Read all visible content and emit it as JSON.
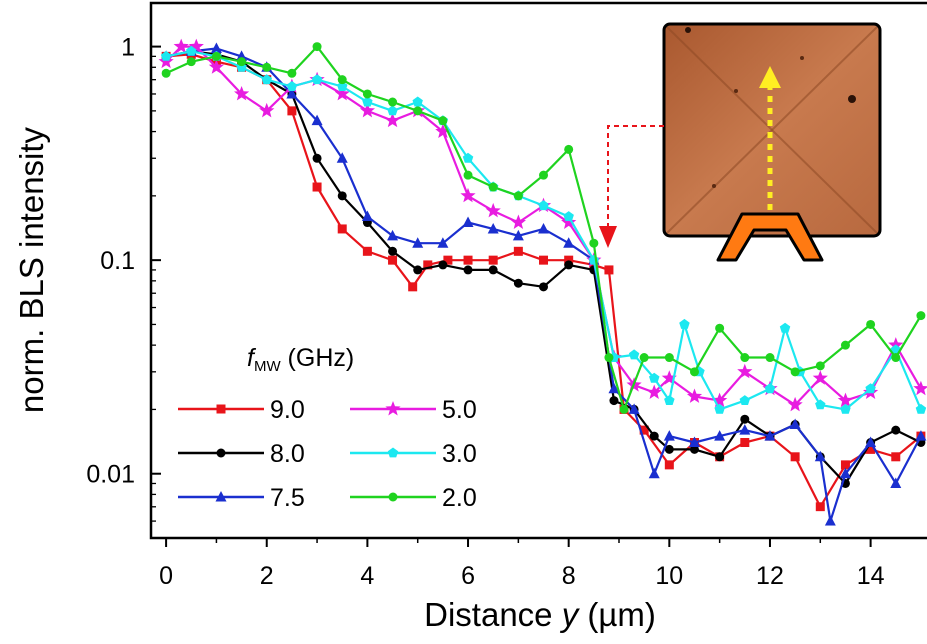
{
  "chart_data": {
    "type": "line",
    "title": "",
    "xlabel": {
      "pre": "Distance ",
      "var": "y",
      "post": " (µm)"
    },
    "ylabel": "norm. BLS intensity",
    "xscale": "linear",
    "yscale": "log",
    "xlim": [
      -0.3,
      15.2
    ],
    "ylim": [
      0.005,
      1.6
    ],
    "xticks": [
      0,
      2,
      4,
      6,
      8,
      10,
      12,
      14
    ],
    "yticks": [
      {
        "value": 1,
        "label": "1"
      },
      {
        "value": 0.1,
        "label": "0.1"
      },
      {
        "value": 0.01,
        "label": "0.01"
      }
    ],
    "legend": {
      "title_symbol": "f",
      "title_subscript": "MW",
      "title_unit": " (GHz)",
      "placement": "lower-left"
    },
    "series": [
      {
        "name": "9.0",
        "color": "#e8141a",
        "marker": "square",
        "dash": "solid",
        "x": [
          0,
          0.5,
          1,
          1.5,
          2,
          2.5,
          3,
          3.5,
          4,
          4.5,
          4.9,
          5.2,
          5.6,
          6,
          6.5,
          7,
          7.5,
          8,
          8.5,
          8.8,
          9.1,
          9.5,
          10,
          10.5,
          11,
          11.5,
          12,
          12.5,
          13,
          13.5,
          14,
          14.5,
          15
        ],
        "y": [
          0.9,
          0.92,
          0.85,
          0.8,
          0.7,
          0.5,
          0.22,
          0.14,
          0.11,
          0.1,
          0.075,
          0.095,
          0.1,
          0.1,
          0.1,
          0.11,
          0.1,
          0.1,
          0.095,
          0.09,
          0.02,
          0.016,
          0.011,
          0.014,
          0.012,
          0.014,
          0.015,
          0.012,
          0.007,
          0.011,
          0.013,
          0.012,
          0.015
        ]
      },
      {
        "name": "8.0",
        "color": "#000000",
        "marker": "circle",
        "dash": "solid",
        "x": [
          0,
          0.5,
          1,
          1.5,
          2,
          2.5,
          3,
          3.5,
          4,
          4.5,
          5,
          5.5,
          6,
          6.5,
          7,
          7.5,
          8,
          8.5,
          8.9,
          9.3,
          9.7,
          10,
          10.5,
          11,
          11.5,
          12,
          12.5,
          13,
          13.5,
          14,
          14.5,
          15
        ],
        "y": [
          0.9,
          0.95,
          0.92,
          0.85,
          0.7,
          0.6,
          0.3,
          0.2,
          0.15,
          0.11,
          0.09,
          0.095,
          0.09,
          0.09,
          0.078,
          0.075,
          0.095,
          0.09,
          0.022,
          0.02,
          0.015,
          0.013,
          0.013,
          0.012,
          0.018,
          0.015,
          0.017,
          0.012,
          0.009,
          0.014,
          0.016,
          0.014
        ]
      },
      {
        "name": "7.5",
        "color": "#1a2fcf",
        "marker": "triangle",
        "dash": "solid",
        "x": [
          0,
          0.5,
          1,
          1.5,
          2,
          2.5,
          3,
          3.5,
          4,
          4.5,
          5,
          5.5,
          6,
          6.5,
          7,
          7.5,
          8,
          8.5,
          8.9,
          9.3,
          9.7,
          10,
          10.5,
          11,
          11.5,
          12,
          12.5,
          13,
          13.2,
          13.5,
          14,
          14.5,
          15
        ],
        "y": [
          0.9,
          0.95,
          0.98,
          0.9,
          0.8,
          0.6,
          0.45,
          0.3,
          0.16,
          0.13,
          0.12,
          0.12,
          0.15,
          0.14,
          0.13,
          0.14,
          0.12,
          0.1,
          0.025,
          0.02,
          0.01,
          0.015,
          0.014,
          0.015,
          0.016,
          0.015,
          0.017,
          0.012,
          0.006,
          0.01,
          0.014,
          0.009,
          0.015
        ]
      },
      {
        "name": "5.0",
        "color": "#e81ce0",
        "marker": "star",
        "dash": "solid",
        "x": [
          0,
          0.3,
          0.6,
          1,
          1.5,
          2,
          2.5,
          3,
          3.5,
          4,
          4.5,
          5,
          5.5,
          6,
          6.5,
          7,
          7.5,
          8,
          8.5,
          8.9,
          9.3,
          9.7,
          10,
          10.5,
          11,
          11.5,
          12,
          12.5,
          13,
          13.5,
          14,
          14.5,
          15
        ],
        "y": [
          0.85,
          1.0,
          1.0,
          0.8,
          0.6,
          0.5,
          0.65,
          0.7,
          0.6,
          0.5,
          0.45,
          0.5,
          0.4,
          0.2,
          0.17,
          0.15,
          0.18,
          0.15,
          0.1,
          0.035,
          0.026,
          0.024,
          0.028,
          0.023,
          0.022,
          0.03,
          0.025,
          0.021,
          0.028,
          0.022,
          0.024,
          0.04,
          0.025
        ]
      },
      {
        "name": "3.0",
        "color": "#1ce8f0",
        "marker": "pentagon",
        "dash": "solid",
        "x": [
          0,
          0.5,
          1,
          1.5,
          2,
          2.5,
          3,
          3.5,
          4,
          4.5,
          5,
          5.5,
          6,
          6.5,
          7,
          7.5,
          8,
          8.5,
          8.9,
          9.3,
          9.7,
          10,
          10.3,
          10.6,
          11,
          11.5,
          12,
          12.3,
          12.6,
          13,
          13.5,
          14,
          14.5,
          15
        ],
        "y": [
          0.9,
          0.95,
          0.9,
          0.8,
          0.7,
          0.65,
          0.7,
          0.65,
          0.55,
          0.5,
          0.55,
          0.45,
          0.3,
          0.22,
          0.2,
          0.18,
          0.16,
          0.1,
          0.035,
          0.036,
          0.028,
          0.022,
          0.05,
          0.03,
          0.02,
          0.022,
          0.025,
          0.048,
          0.03,
          0.021,
          0.02,
          0.025,
          0.038,
          0.02
        ]
      },
      {
        "name": "2.0",
        "color": "#1fd31f",
        "marker": "circle",
        "dash": "solid",
        "x": [
          0,
          0.5,
          1,
          1.5,
          2,
          2.5,
          3,
          3.5,
          4,
          4.5,
          5,
          5.5,
          6,
          6.5,
          7,
          7.5,
          8,
          8.5,
          8.8,
          9.1,
          9.5,
          10,
          10.5,
          11,
          11.5,
          12,
          12.5,
          13,
          13.5,
          14,
          14.5,
          15
        ],
        "y": [
          0.75,
          0.85,
          0.9,
          0.85,
          0.8,
          0.75,
          1.0,
          0.7,
          0.6,
          0.55,
          0.5,
          0.45,
          0.25,
          0.22,
          0.2,
          0.25,
          0.33,
          0.12,
          0.035,
          0.02,
          0.035,
          0.035,
          0.03,
          0.048,
          0.035,
          0.035,
          0.03,
          0.032,
          0.04,
          0.05,
          0.035,
          0.055
        ]
      }
    ]
  }
}
